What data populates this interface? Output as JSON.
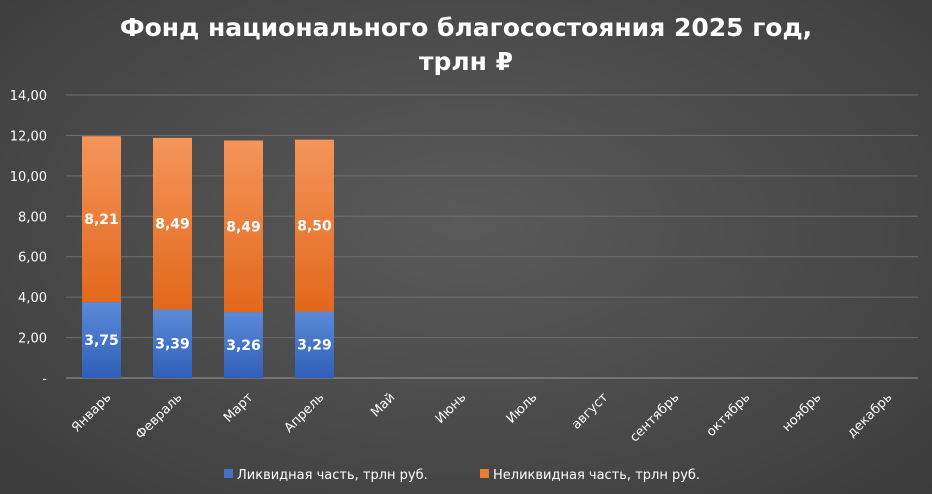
{
  "chart_data": {
    "type": "bar",
    "stacked": true,
    "title_line1": "Фонд национального благосостояния 2025 год,",
    "title_line2": "трлн ₽",
    "categories": [
      "Январь",
      "Февраль",
      "Март",
      "Апрель",
      "Май",
      "Июнь",
      "Июль",
      "август",
      "сентябрь",
      "октябрь",
      "ноябрь",
      "декабрь"
    ],
    "series": [
      {
        "name": "Ликвидная часть, трлн руб.",
        "color": "#4472c4",
        "values": [
          3.75,
          3.39,
          3.26,
          3.29,
          null,
          null,
          null,
          null,
          null,
          null,
          null,
          null
        ]
      },
      {
        "name": "Неликвидная часть, трлн руб.",
        "color": "#ed7d31",
        "values": [
          8.21,
          8.49,
          8.49,
          8.5,
          null,
          null,
          null,
          null,
          null,
          null,
          null,
          null
        ]
      }
    ],
    "data_labels": [
      [
        "3,75",
        "3,39",
        "3,26",
        "3,29"
      ],
      [
        "8,21",
        "8,49",
        "8,49",
        "8,50"
      ]
    ],
    "ylim": [
      0,
      14
    ],
    "yticks": [
      "-",
      "2,00",
      "4,00",
      "6,00",
      "8,00",
      "10,00",
      "12,00",
      "14,00"
    ],
    "grid": true,
    "legend_position": "bottom"
  }
}
